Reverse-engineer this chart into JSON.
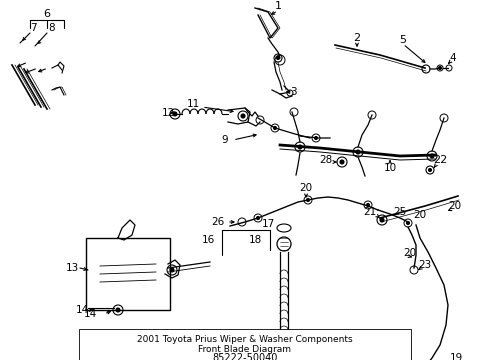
{
  "title": "85222-50040",
  "subtitle1": "Front Blade Diagram",
  "subtitle2": "2001 Toyota Prius Wiper & Washer Components",
  "background_color": "#ffffff",
  "line_color": "#000000",
  "text_color": "#000000",
  "fig_width": 4.89,
  "fig_height": 3.6,
  "dpi": 100
}
